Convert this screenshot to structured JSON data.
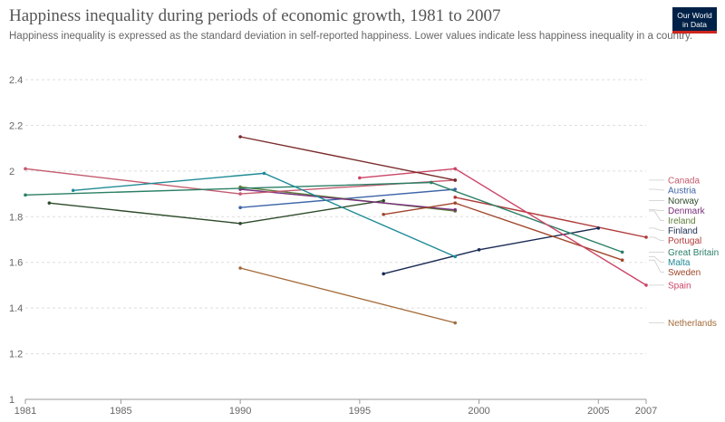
{
  "header": {
    "logo_line1": "Our World",
    "logo_line2": "in Data"
  },
  "chart_data": {
    "type": "line",
    "title": "Happiness inequality during periods of economic growth, 1981 to 2007",
    "subtitle": "Happiness inequality is expressed as the standard deviation in self-reported happiness. Lower values indicate less happiness inequality in a country.",
    "xlabel": "",
    "ylabel": "",
    "xlim": [
      1981,
      2007
    ],
    "ylim": [
      1,
      2.4
    ],
    "x_ticks": [
      1981,
      1985,
      1990,
      1995,
      2000,
      2005,
      2007
    ],
    "y_ticks": [
      1,
      1.2,
      1.4,
      1.6,
      1.8,
      2,
      2.2,
      2.4
    ],
    "grid": "horizontal-dashed",
    "legend": "right",
    "series": [
      {
        "name": "Portugal",
        "color": "#b13a3a",
        "x": [
          1999,
          2007
        ],
        "y": [
          1.885,
          1.71
        ]
      },
      {
        "name": "Austria",
        "color": "#3f65a8",
        "x": [
          1990,
          1999
        ],
        "y": [
          1.84,
          1.92
        ]
      },
      {
        "name": "Norway",
        "color": "#2d4b2b",
        "x": [
          1982,
          1990,
          1996
        ],
        "y": [
          1.86,
          1.77,
          1.87
        ]
      },
      {
        "name": "Ireland",
        "color": "#5e7d3a",
        "x": [
          1990,
          1999
        ],
        "y": [
          1.93,
          1.825
        ]
      },
      {
        "name": "Denmark",
        "color": "#7a2f7c",
        "x": [
          1990,
          1999
        ],
        "y": [
          1.92,
          1.83
        ]
      },
      {
        "name": "Finland",
        "color": "#1b2b54",
        "x": [
          1996,
          2000,
          2005
        ],
        "y": [
          1.55,
          1.655,
          1.75
        ]
      },
      {
        "name": "Canada",
        "color": "#c45a6e",
        "x": [
          1981,
          1990,
          1999
        ],
        "y": [
          2.01,
          1.9,
          1.96
        ]
      },
      {
        "name": "Great Britain",
        "color": "#2a7f65",
        "x": [
          1981,
          1998,
          2006
        ],
        "y": [
          1.895,
          1.95,
          1.645
        ]
      },
      {
        "name": "Malta",
        "color": "#1e8b95",
        "x": [
          1983,
          1991,
          1999
        ],
        "y": [
          1.915,
          1.99,
          1.625
        ]
      },
      {
        "name": "Sweden",
        "color": "#a0452a",
        "x": [
          1996,
          1999,
          2006
        ],
        "y": [
          1.81,
          1.86,
          1.61
        ]
      },
      {
        "name": "Spain",
        "color": "#cc4466",
        "x": [
          1995,
          1999,
          2007
        ],
        "y": [
          1.97,
          2.01,
          1.5
        ]
      },
      {
        "name": "Netherlands",
        "color": "#a46b3a",
        "x": [
          1990,
          1999
        ],
        "y": [
          1.575,
          1.335
        ]
      },
      {
        "name": "",
        "color": "#7a2a2a",
        "x": [
          1990,
          1999
        ],
        "y": [
          2.15,
          1.96
        ]
      }
    ]
  }
}
